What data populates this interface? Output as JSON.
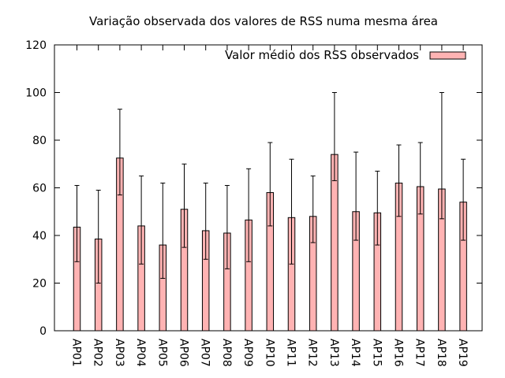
{
  "chart_data": {
    "type": "bar",
    "title": "Variação observada dos valores de RSS numa mesma área",
    "xlabel": "",
    "ylabel": "",
    "ylim": [
      0,
      120
    ],
    "yticks": [
      0,
      20,
      40,
      60,
      80,
      100,
      120
    ],
    "grid": false,
    "legend": {
      "label": "Valor médio dos RSS observados",
      "position": "top-right"
    },
    "colors": {
      "bar_fill": "#ffb3b3",
      "bar_stroke": "#000000"
    },
    "categories": [
      "AP01",
      "AP02",
      "AP03",
      "AP04",
      "AP05",
      "AP06",
      "AP07",
      "AP08",
      "AP09",
      "AP10",
      "AP11",
      "AP12",
      "AP13",
      "AP14",
      "AP15",
      "AP16",
      "AP17",
      "AP18",
      "AP19"
    ],
    "values": [
      43.5,
      38.5,
      72.5,
      44,
      36,
      51,
      42,
      41,
      46.5,
      58,
      47.5,
      48,
      74,
      50,
      49.5,
      62,
      60.5,
      59.5,
      54
    ],
    "error_low": [
      29,
      20,
      57,
      28,
      22,
      35,
      30,
      26,
      29,
      44,
      28,
      37,
      63,
      38,
      36,
      48,
      49,
      47,
      38
    ],
    "error_high": [
      61,
      59,
      93,
      65,
      62,
      70,
      62,
      61,
      68,
      79,
      72,
      65,
      100,
      75,
      67,
      78,
      79,
      100,
      72
    ]
  }
}
